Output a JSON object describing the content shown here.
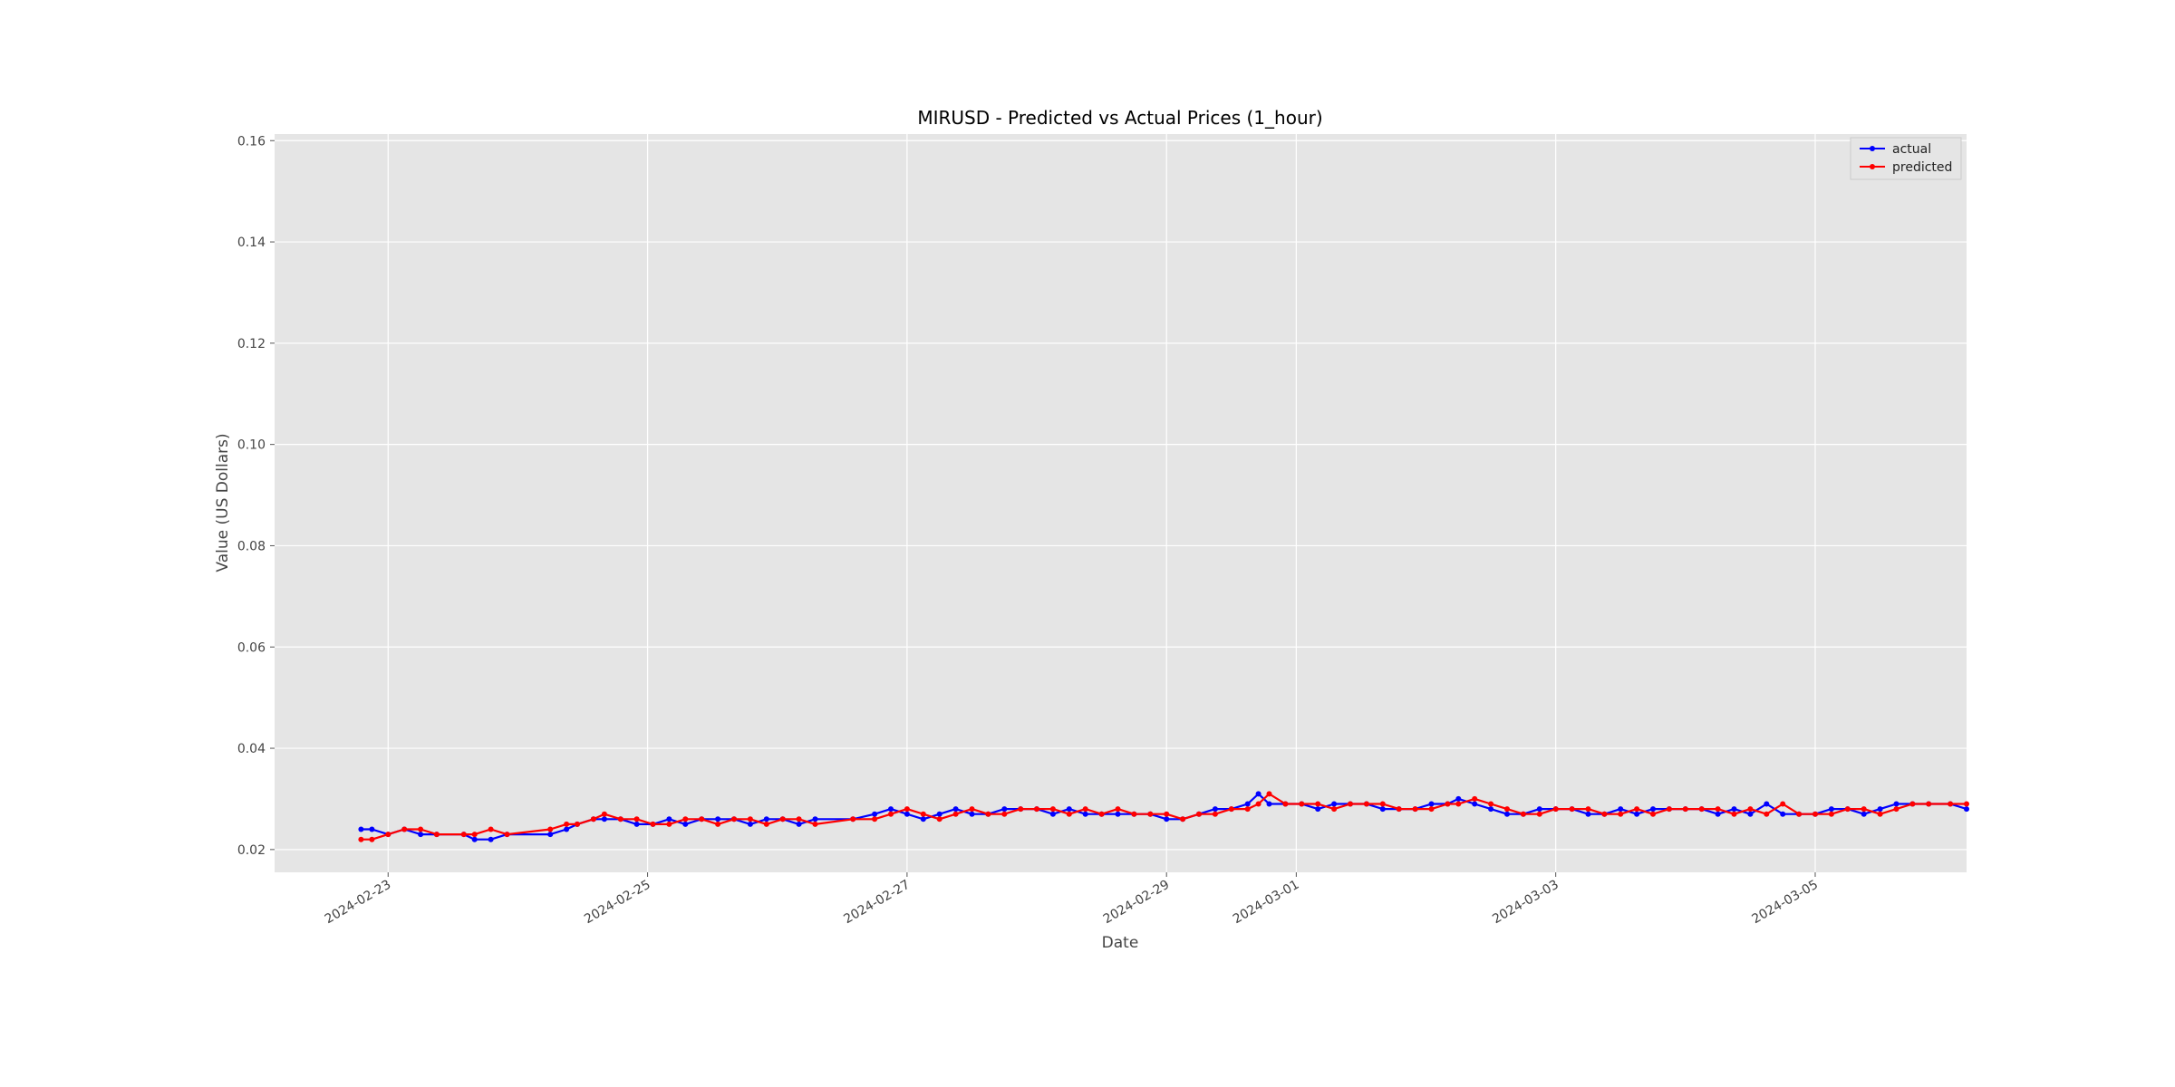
{
  "chart_data": {
    "type": "line",
    "title": "MIRUSD - Predicted vs Actual Prices (1_hour)",
    "xlabel": "Date",
    "ylabel": "Value (US Dollars)",
    "xlim": [
      "2024-02-22T03:00",
      "2024-03-06T04:00"
    ],
    "ylim": [
      0.0155,
      0.1613
    ],
    "x_ticks": [
      "2024-02-23",
      "2024-02-25",
      "2024-02-27",
      "2024-02-29",
      "2024-03-01",
      "2024-03-03",
      "2024-03-05"
    ],
    "y_ticks": [
      "0.02",
      "0.04",
      "0.06",
      "0.08",
      "0.10",
      "0.12",
      "0.14",
      "0.16"
    ],
    "grid": true,
    "legend_position": "top-right",
    "colors": {
      "actual": "#0000ff",
      "predicted": "#ff0000",
      "plot_bg": "#e5e5e5",
      "grid": "#ffffff"
    },
    "series": [
      {
        "name": "actual",
        "color": "#0000ff",
        "points": [
          [
            "2024-02-22T19:00",
            0.024
          ],
          [
            "2024-02-22T21:00",
            0.024
          ],
          [
            "2024-02-23T00:00",
            0.023
          ],
          [
            "2024-02-23T03:00",
            0.024
          ],
          [
            "2024-02-23T06:00",
            0.023
          ],
          [
            "2024-02-23T09:00",
            0.023
          ],
          [
            "2024-02-23T14:00",
            0.023
          ],
          [
            "2024-02-23T16:00",
            0.022
          ],
          [
            "2024-02-23T19:00",
            0.022
          ],
          [
            "2024-02-23T22:00",
            0.023
          ],
          [
            "2024-02-24T06:00",
            0.023
          ],
          [
            "2024-02-24T09:00",
            0.024
          ],
          [
            "2024-02-24T11:00",
            0.025
          ],
          [
            "2024-02-24T14:00",
            0.026
          ],
          [
            "2024-02-24T16:00",
            0.026
          ],
          [
            "2024-02-24T19:00",
            0.026
          ],
          [
            "2024-02-24T22:00",
            0.025
          ],
          [
            "2024-02-25T01:00",
            0.025
          ],
          [
            "2024-02-25T04:00",
            0.026
          ],
          [
            "2024-02-25T07:00",
            0.025
          ],
          [
            "2024-02-25T10:00",
            0.026
          ],
          [
            "2024-02-25T13:00",
            0.026
          ],
          [
            "2024-02-25T16:00",
            0.026
          ],
          [
            "2024-02-25T19:00",
            0.025
          ],
          [
            "2024-02-25T22:00",
            0.026
          ],
          [
            "2024-02-26T01:00",
            0.026
          ],
          [
            "2024-02-26T04:00",
            0.025
          ],
          [
            "2024-02-26T07:00",
            0.026
          ],
          [
            "2024-02-26T14:00",
            0.026
          ],
          [
            "2024-02-26T18:00",
            0.027
          ],
          [
            "2024-02-26T21:00",
            0.028
          ],
          [
            "2024-02-27T00:00",
            0.027
          ],
          [
            "2024-02-27T03:00",
            0.026
          ],
          [
            "2024-02-27T06:00",
            0.027
          ],
          [
            "2024-02-27T09:00",
            0.028
          ],
          [
            "2024-02-27T12:00",
            0.027
          ],
          [
            "2024-02-27T15:00",
            0.027
          ],
          [
            "2024-02-27T18:00",
            0.028
          ],
          [
            "2024-02-27T21:00",
            0.028
          ],
          [
            "2024-02-28T00:00",
            0.028
          ],
          [
            "2024-02-28T03:00",
            0.027
          ],
          [
            "2024-02-28T06:00",
            0.028
          ],
          [
            "2024-02-28T09:00",
            0.027
          ],
          [
            "2024-02-28T12:00",
            0.027
          ],
          [
            "2024-02-28T15:00",
            0.027
          ],
          [
            "2024-02-28T18:00",
            0.027
          ],
          [
            "2024-02-28T21:00",
            0.027
          ],
          [
            "2024-02-29T00:00",
            0.026
          ],
          [
            "2024-02-29T03:00",
            0.026
          ],
          [
            "2024-02-29T06:00",
            0.027
          ],
          [
            "2024-02-29T09:00",
            0.028
          ],
          [
            "2024-02-29T12:00",
            0.028
          ],
          [
            "2024-02-29T15:00",
            0.029
          ],
          [
            "2024-02-29T17:00",
            0.031
          ],
          [
            "2024-02-29T19:00",
            0.029
          ],
          [
            "2024-02-29T22:00",
            0.029
          ],
          [
            "2024-03-01T01:00",
            0.029
          ],
          [
            "2024-03-01T04:00",
            0.028
          ],
          [
            "2024-03-01T07:00",
            0.029
          ],
          [
            "2024-03-01T10:00",
            0.029
          ],
          [
            "2024-03-01T13:00",
            0.029
          ],
          [
            "2024-03-01T16:00",
            0.028
          ],
          [
            "2024-03-01T19:00",
            0.028
          ],
          [
            "2024-03-01T22:00",
            0.028
          ],
          [
            "2024-03-02T01:00",
            0.029
          ],
          [
            "2024-03-02T04:00",
            0.029
          ],
          [
            "2024-03-02T06:00",
            0.03
          ],
          [
            "2024-03-02T09:00",
            0.029
          ],
          [
            "2024-03-02T12:00",
            0.028
          ],
          [
            "2024-03-02T15:00",
            0.027
          ],
          [
            "2024-03-02T18:00",
            0.027
          ],
          [
            "2024-03-02T21:00",
            0.028
          ],
          [
            "2024-03-03T00:00",
            0.028
          ],
          [
            "2024-03-03T03:00",
            0.028
          ],
          [
            "2024-03-03T06:00",
            0.027
          ],
          [
            "2024-03-03T09:00",
            0.027
          ],
          [
            "2024-03-03T12:00",
            0.028
          ],
          [
            "2024-03-03T15:00",
            0.027
          ],
          [
            "2024-03-03T18:00",
            0.028
          ],
          [
            "2024-03-03T21:00",
            0.028
          ],
          [
            "2024-03-04T00:00",
            0.028
          ],
          [
            "2024-03-04T03:00",
            0.028
          ],
          [
            "2024-03-04T06:00",
            0.027
          ],
          [
            "2024-03-04T09:00",
            0.028
          ],
          [
            "2024-03-04T12:00",
            0.027
          ],
          [
            "2024-03-04T15:00",
            0.029
          ],
          [
            "2024-03-04T18:00",
            0.027
          ],
          [
            "2024-03-04T21:00",
            0.027
          ],
          [
            "2024-03-05T00:00",
            0.027
          ],
          [
            "2024-03-05T03:00",
            0.028
          ],
          [
            "2024-03-05T06:00",
            0.028
          ],
          [
            "2024-03-05T09:00",
            0.027
          ],
          [
            "2024-03-05T12:00",
            0.028
          ],
          [
            "2024-03-05T15:00",
            0.029
          ],
          [
            "2024-03-05T18:00",
            0.029
          ],
          [
            "2024-03-05T21:00",
            0.029
          ],
          [
            "2024-03-06T01:00",
            0.029
          ],
          [
            "2024-03-06T04:00",
            0.028
          ]
        ]
      },
      {
        "name": "predicted",
        "color": "#ff0000",
        "points": [
          [
            "2024-02-22T19:00",
            0.022
          ],
          [
            "2024-02-22T21:00",
            0.022
          ],
          [
            "2024-02-23T00:00",
            0.023
          ],
          [
            "2024-02-23T03:00",
            0.024
          ],
          [
            "2024-02-23T06:00",
            0.024
          ],
          [
            "2024-02-23T09:00",
            0.023
          ],
          [
            "2024-02-23T14:00",
            0.023
          ],
          [
            "2024-02-23T16:00",
            0.023
          ],
          [
            "2024-02-23T19:00",
            0.024
          ],
          [
            "2024-02-23T22:00",
            0.023
          ],
          [
            "2024-02-24T06:00",
            0.024
          ],
          [
            "2024-02-24T09:00",
            0.025
          ],
          [
            "2024-02-24T11:00",
            0.025
          ],
          [
            "2024-02-24T14:00",
            0.026
          ],
          [
            "2024-02-24T16:00",
            0.027
          ],
          [
            "2024-02-24T19:00",
            0.026
          ],
          [
            "2024-02-24T22:00",
            0.026
          ],
          [
            "2024-02-25T01:00",
            0.025
          ],
          [
            "2024-02-25T04:00",
            0.025
          ],
          [
            "2024-02-25T07:00",
            0.026
          ],
          [
            "2024-02-25T10:00",
            0.026
          ],
          [
            "2024-02-25T13:00",
            0.025
          ],
          [
            "2024-02-25T16:00",
            0.026
          ],
          [
            "2024-02-25T19:00",
            0.026
          ],
          [
            "2024-02-25T22:00",
            0.025
          ],
          [
            "2024-02-26T01:00",
            0.026
          ],
          [
            "2024-02-26T04:00",
            0.026
          ],
          [
            "2024-02-26T07:00",
            0.025
          ],
          [
            "2024-02-26T14:00",
            0.026
          ],
          [
            "2024-02-26T18:00",
            0.026
          ],
          [
            "2024-02-26T21:00",
            0.027
          ],
          [
            "2024-02-27T00:00",
            0.028
          ],
          [
            "2024-02-27T03:00",
            0.027
          ],
          [
            "2024-02-27T06:00",
            0.026
          ],
          [
            "2024-02-27T09:00",
            0.027
          ],
          [
            "2024-02-27T12:00",
            0.028
          ],
          [
            "2024-02-27T15:00",
            0.027
          ],
          [
            "2024-02-27T18:00",
            0.027
          ],
          [
            "2024-02-27T21:00",
            0.028
          ],
          [
            "2024-02-28T00:00",
            0.028
          ],
          [
            "2024-02-28T03:00",
            0.028
          ],
          [
            "2024-02-28T06:00",
            0.027
          ],
          [
            "2024-02-28T09:00",
            0.028
          ],
          [
            "2024-02-28T12:00",
            0.027
          ],
          [
            "2024-02-28T15:00",
            0.028
          ],
          [
            "2024-02-28T18:00",
            0.027
          ],
          [
            "2024-02-28T21:00",
            0.027
          ],
          [
            "2024-02-29T00:00",
            0.027
          ],
          [
            "2024-02-29T03:00",
            0.026
          ],
          [
            "2024-02-29T06:00",
            0.027
          ],
          [
            "2024-02-29T09:00",
            0.027
          ],
          [
            "2024-02-29T12:00",
            0.028
          ],
          [
            "2024-02-29T15:00",
            0.028
          ],
          [
            "2024-02-29T17:00",
            0.029
          ],
          [
            "2024-02-29T19:00",
            0.031
          ],
          [
            "2024-02-29T22:00",
            0.029
          ],
          [
            "2024-03-01T01:00",
            0.029
          ],
          [
            "2024-03-01T04:00",
            0.029
          ],
          [
            "2024-03-01T07:00",
            0.028
          ],
          [
            "2024-03-01T10:00",
            0.029
          ],
          [
            "2024-03-01T13:00",
            0.029
          ],
          [
            "2024-03-01T16:00",
            0.029
          ],
          [
            "2024-03-01T19:00",
            0.028
          ],
          [
            "2024-03-01T22:00",
            0.028
          ],
          [
            "2024-03-02T01:00",
            0.028
          ],
          [
            "2024-03-02T04:00",
            0.029
          ],
          [
            "2024-03-02T06:00",
            0.029
          ],
          [
            "2024-03-02T09:00",
            0.03
          ],
          [
            "2024-03-02T12:00",
            0.029
          ],
          [
            "2024-03-02T15:00",
            0.028
          ],
          [
            "2024-03-02T18:00",
            0.027
          ],
          [
            "2024-03-02T21:00",
            0.027
          ],
          [
            "2024-03-03T00:00",
            0.028
          ],
          [
            "2024-03-03T03:00",
            0.028
          ],
          [
            "2024-03-03T06:00",
            0.028
          ],
          [
            "2024-03-03T09:00",
            0.027
          ],
          [
            "2024-03-03T12:00",
            0.027
          ],
          [
            "2024-03-03T15:00",
            0.028
          ],
          [
            "2024-03-03T18:00",
            0.027
          ],
          [
            "2024-03-03T21:00",
            0.028
          ],
          [
            "2024-03-04T00:00",
            0.028
          ],
          [
            "2024-03-04T03:00",
            0.028
          ],
          [
            "2024-03-04T06:00",
            0.028
          ],
          [
            "2024-03-04T09:00",
            0.027
          ],
          [
            "2024-03-04T12:00",
            0.028
          ],
          [
            "2024-03-04T15:00",
            0.027
          ],
          [
            "2024-03-04T18:00",
            0.029
          ],
          [
            "2024-03-04T21:00",
            0.027
          ],
          [
            "2024-03-05T00:00",
            0.027
          ],
          [
            "2024-03-05T03:00",
            0.027
          ],
          [
            "2024-03-05T06:00",
            0.028
          ],
          [
            "2024-03-05T09:00",
            0.028
          ],
          [
            "2024-03-05T12:00",
            0.027
          ],
          [
            "2024-03-05T15:00",
            0.028
          ],
          [
            "2024-03-05T18:00",
            0.029
          ],
          [
            "2024-03-05T21:00",
            0.029
          ],
          [
            "2024-03-06T01:00",
            0.029
          ],
          [
            "2024-03-06T04:00",
            0.029
          ]
        ]
      }
    ]
  }
}
